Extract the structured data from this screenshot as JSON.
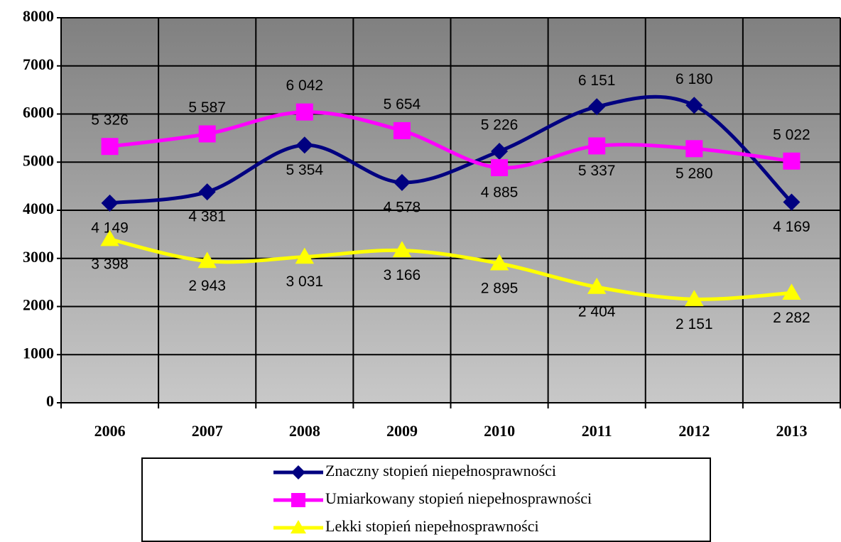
{
  "chart_data": {
    "type": "line",
    "categories": [
      "2006",
      "2007",
      "2008",
      "2009",
      "2010",
      "2011",
      "2012",
      "2013"
    ],
    "series": [
      {
        "name": "Znaczny stopień niepełnosprawności",
        "color": "#000080",
        "marker": "diamond",
        "values": [
          4149,
          4381,
          5354,
          4578,
          5226,
          6151,
          6180,
          4169
        ],
        "value_labels": [
          "4 149",
          "4 381",
          "5 354",
          "4 578",
          "5 226",
          "6 151",
          "6 180",
          "4 169"
        ]
      },
      {
        "name": "Umiarkowany stopień niepełnosprawności",
        "color": "#ff00ff",
        "marker": "square",
        "values": [
          5326,
          5587,
          6042,
          5654,
          4885,
          5337,
          5280,
          5022
        ],
        "value_labels": [
          "5 326",
          "5 587",
          "6 042",
          "5 654",
          "4 885",
          "5 337",
          "5 280",
          "5 022"
        ]
      },
      {
        "name": "Lekki stopień niepełnosprawności",
        "color": "#ffff00",
        "marker": "triangle",
        "values": [
          3398,
          2943,
          3031,
          3166,
          2895,
          2404,
          2151,
          2282
        ],
        "value_labels": [
          "3 398",
          "2 943",
          "3 031",
          "3 166",
          "2 895",
          "2 404",
          "2 151",
          "2 282"
        ]
      }
    ],
    "ylim": [
      0,
      8000
    ],
    "yticks": [
      0,
      1000,
      2000,
      3000,
      4000,
      5000,
      6000,
      7000,
      8000
    ],
    "grid": true,
    "smooth": true,
    "legend": "bottom"
  }
}
